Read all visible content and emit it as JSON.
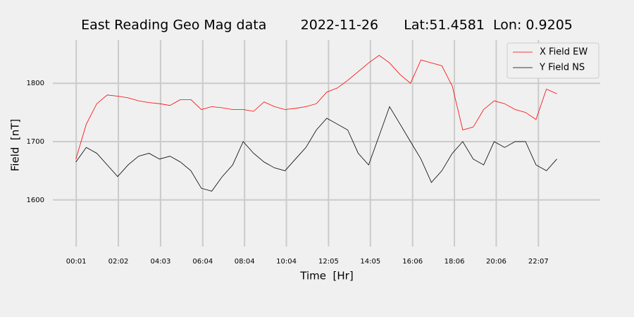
{
  "chart_data": {
    "type": "line",
    "title": "East Reading Geo Mag data        2022-11-26      Lat:51.4581  Lon: 0.9205",
    "x_label": "Time  [Hr]",
    "y_label": "Field  [nT]",
    "x": [
      0,
      0.5,
      1,
      1.5,
      2,
      2.5,
      3,
      3.5,
      4,
      4.5,
      5,
      5.5,
      6,
      6.5,
      7,
      7.5,
      8,
      8.5,
      9,
      9.5,
      10,
      10.5,
      11,
      11.5,
      12,
      12.5,
      13,
      13.5,
      14,
      14.5,
      15,
      15.5,
      16,
      16.5,
      17,
      17.5,
      18,
      18.5,
      19,
      19.5,
      20,
      20.5,
      21,
      21.5,
      22,
      22.5,
      23
    ],
    "series": [
      {
        "name": "X Field EW",
        "color": "red",
        "values": [
          1670,
          1730,
          1765,
          1780,
          1778,
          1775,
          1770,
          1767,
          1765,
          1762,
          1772,
          1772,
          1755,
          1760,
          1758,
          1755,
          1755,
          1752,
          1768,
          1760,
          1755,
          1757,
          1760,
          1765,
          1785,
          1792,
          1805,
          1820,
          1835,
          1848,
          1835,
          1815,
          1800,
          1840,
          1835,
          1830,
          1795,
          1720,
          1725,
          1755,
          1770,
          1765,
          1755,
          1750,
          1738,
          1790,
          1782
        ]
      },
      {
        "name": "Y Field NS",
        "color": "black",
        "values": [
          1665,
          1690,
          1680,
          1660,
          1640,
          1660,
          1675,
          1680,
          1670,
          1675,
          1665,
          1650,
          1620,
          1615,
          1640,
          1660,
          1700,
          1680,
          1665,
          1655,
          1650,
          1670,
          1690,
          1720,
          1740,
          1730,
          1720,
          1680,
          1660,
          1710,
          1760,
          1730,
          1700,
          1670,
          1630,
          1650,
          1680,
          1700,
          1670,
          1660,
          1700,
          1690,
          1700,
          1700,
          1660,
          1650,
          1670
        ]
      }
    ],
    "xlim": [
      -1.1,
      25.07
    ],
    "xticks": [
      {
        "value": 0.0167,
        "label": "00:01"
      },
      {
        "value": 2.033,
        "label": "02:02"
      },
      {
        "value": 4.05,
        "label": "04:03"
      },
      {
        "value": 6.067,
        "label": "06:04"
      },
      {
        "value": 8.067,
        "label": "08:04"
      },
      {
        "value": 10.067,
        "label": "10:04"
      },
      {
        "value": 12.083,
        "label": "12:05"
      },
      {
        "value": 14.083,
        "label": "14:05"
      },
      {
        "value": 16.1,
        "label": "16:06"
      },
      {
        "value": 18.1,
        "label": "18:06"
      },
      {
        "value": 20.1,
        "label": "20:06"
      },
      {
        "value": 22.117,
        "label": "22:07"
      }
    ],
    "ylim": [
      1520,
      1874
    ],
    "yticks": [
      1600,
      1700,
      1800
    ],
    "grid": true,
    "legend": "upper right"
  }
}
